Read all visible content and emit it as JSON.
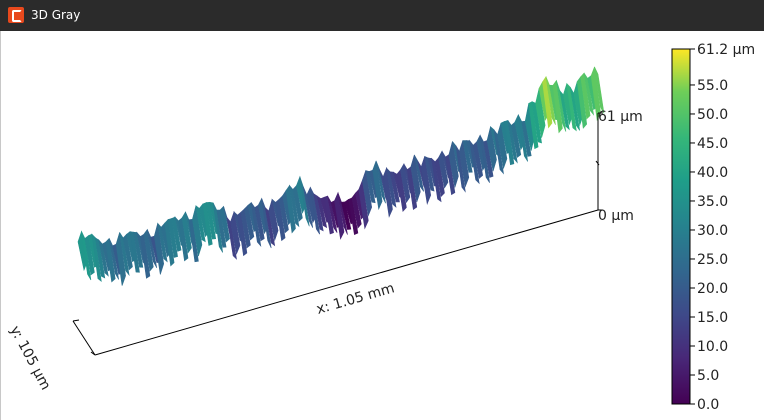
{
  "window": {
    "title": "3D Gray"
  },
  "plot3d": {
    "x_axis_label": "x: 1.05 mm",
    "y_axis_label": "y: 105 µm",
    "z_top_label": "61 µm",
    "z_bottom_label": "0 µm"
  },
  "colorbar": {
    "colormap": "viridis",
    "max_label": "61.2 µm",
    "ticks": [
      "55.0",
      "50.0",
      "45.0",
      "40.0",
      "35.0",
      "30.0",
      "25.0",
      "20.0",
      "15.0",
      "10.0",
      "5.0",
      "0.0"
    ],
    "range": [
      0,
      61.2
    ]
  },
  "colors": {
    "titlebar": "#2b2b2b",
    "icon": "#e8491d"
  }
}
